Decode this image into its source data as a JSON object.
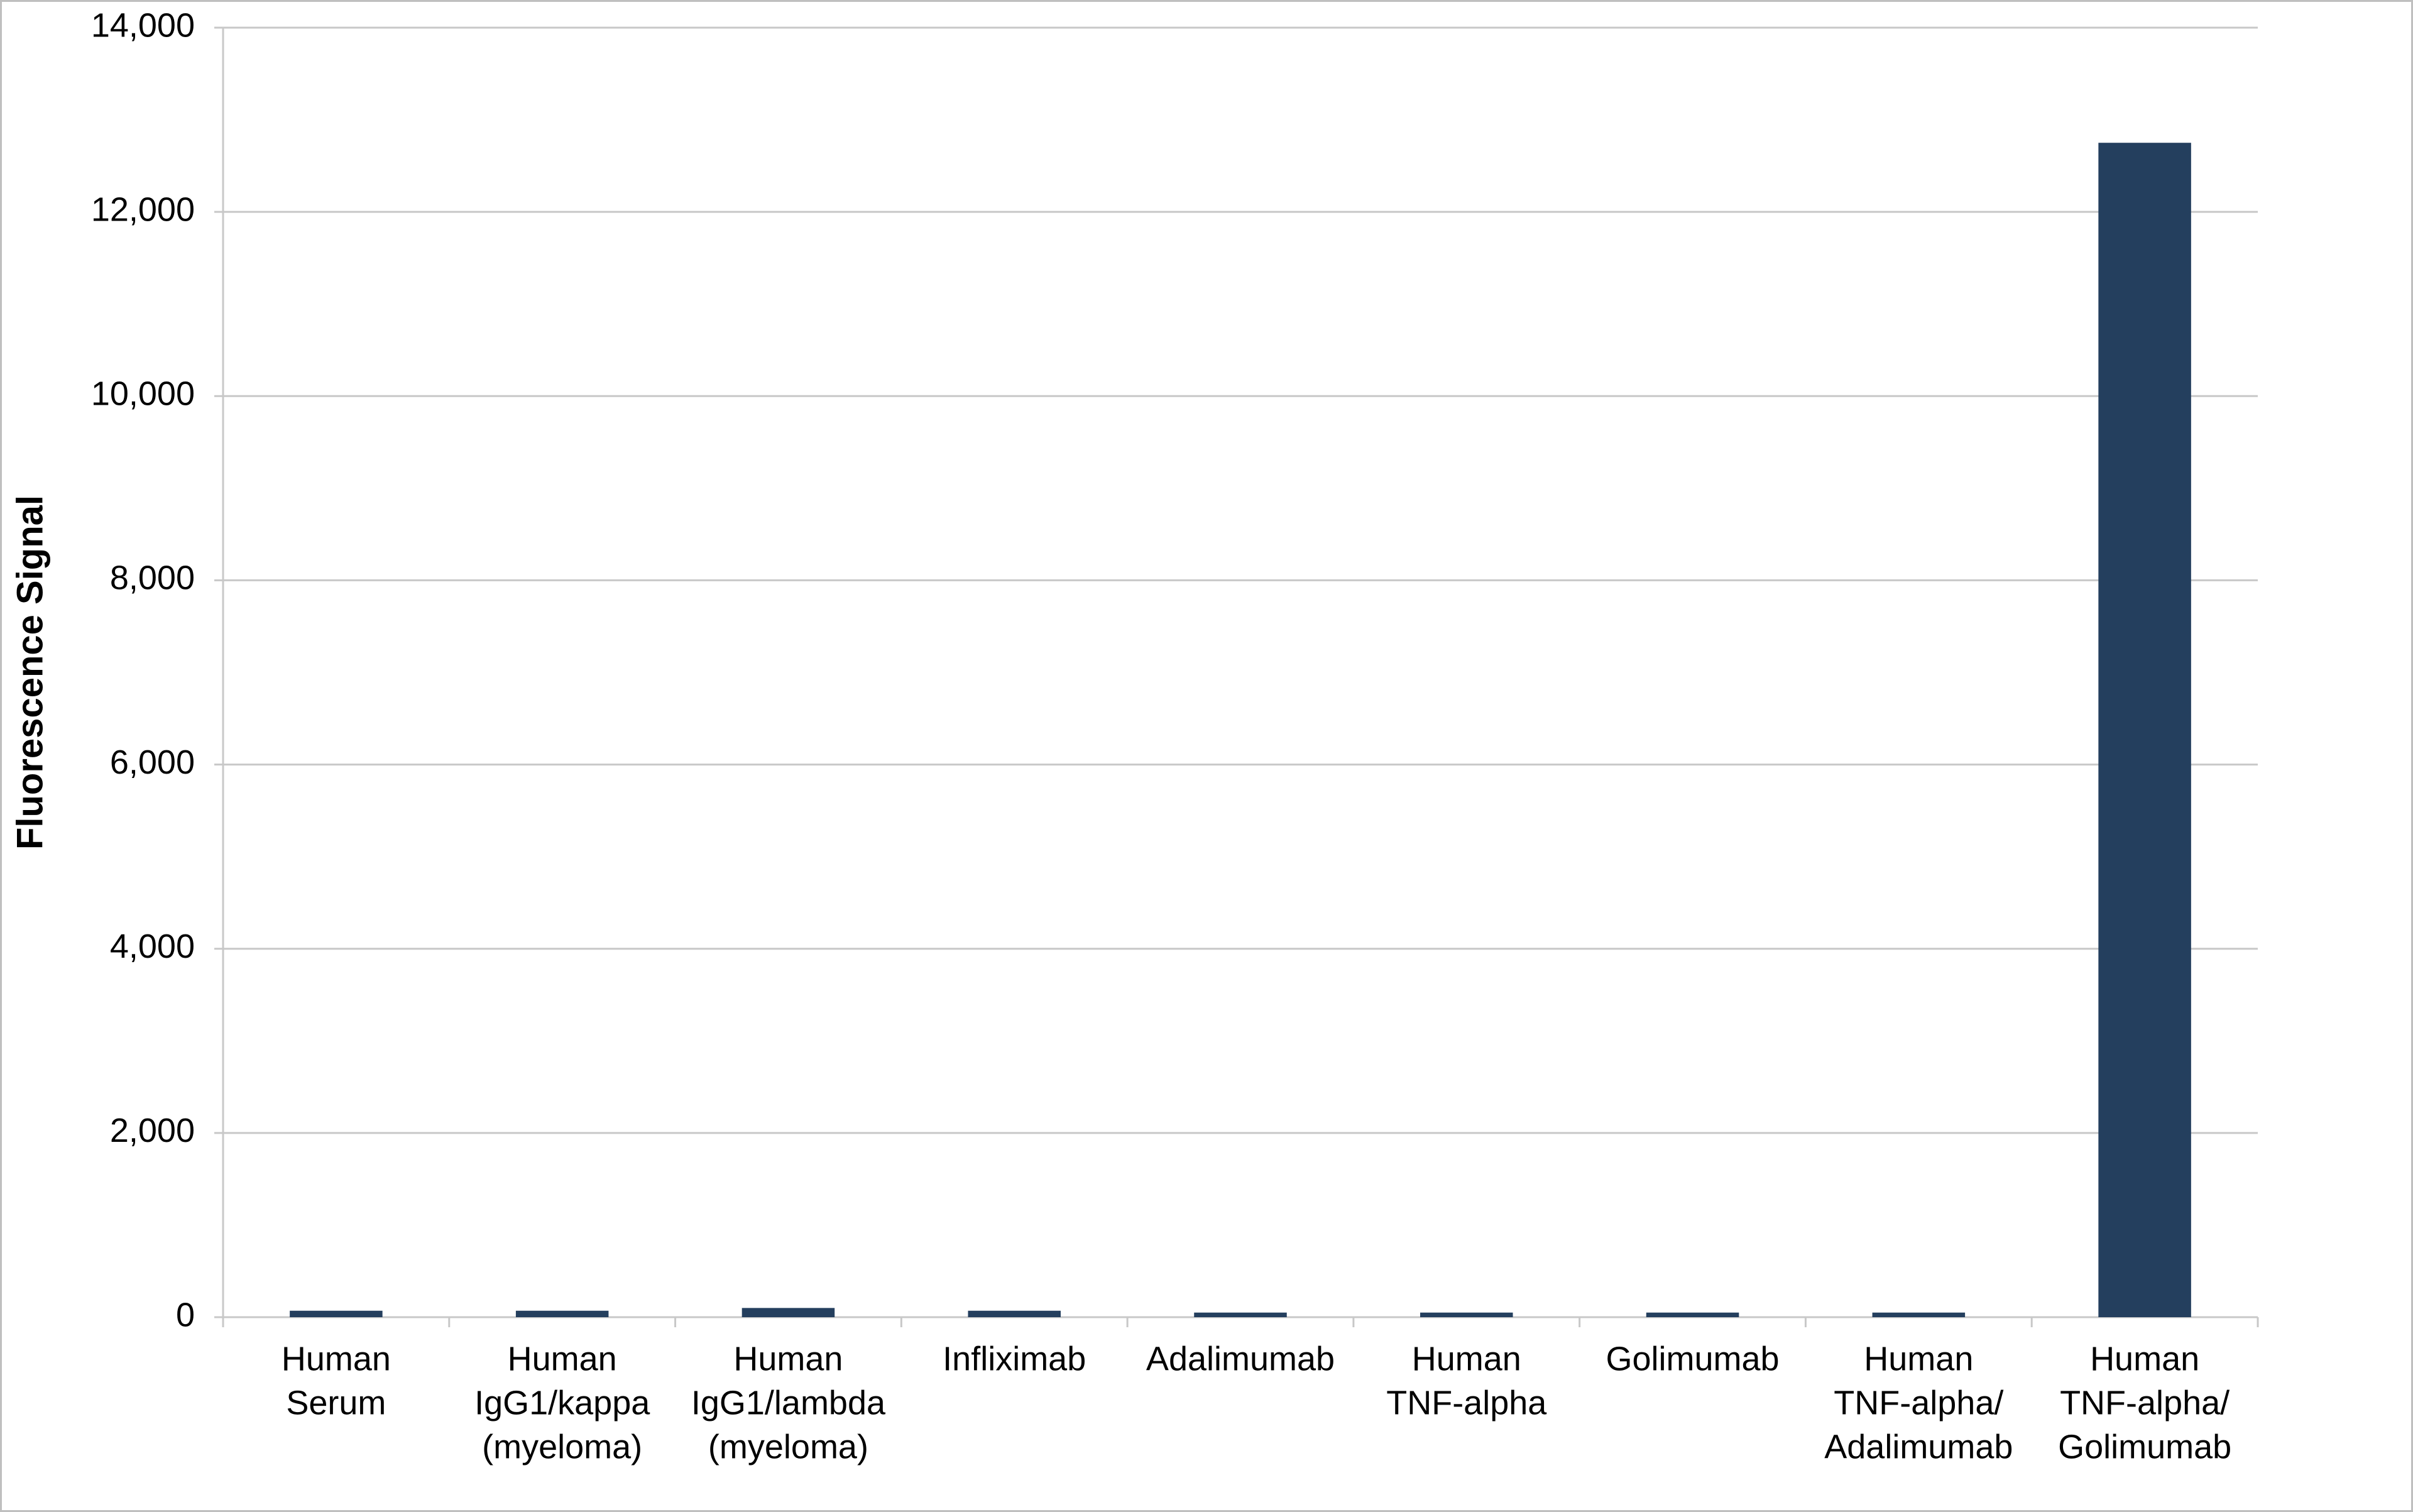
{
  "chart_data": {
    "type": "bar",
    "y_label": "Fluorescence Signal",
    "categories": [
      [
        "Human",
        "Serum"
      ],
      [
        "Human",
        "IgG1/kappa",
        "(myeloma)"
      ],
      [
        "Human",
        "IgG1/lambda",
        "(myeloma)"
      ],
      [
        "Infliximab"
      ],
      [
        "Adalimumab"
      ],
      [
        "Human",
        "TNF-alpha"
      ],
      [
        "Golimumab"
      ],
      [
        "Human",
        "TNF-alpha/",
        "Adalimumab"
      ],
      [
        "Human",
        "TNF-alpha/",
        "Golimumab"
      ]
    ],
    "values": [
      70,
      70,
      100,
      70,
      50,
      50,
      50,
      50,
      12750
    ],
    "color": "#243f5e",
    "ylim": [
      0,
      14000
    ],
    "yticks": [
      0,
      {
        "value": 2000,
        "label": "2,000"
      },
      {
        "value": 4000,
        "label": "4,000"
      },
      {
        "value": 6000,
        "label": "6,000"
      },
      {
        "value": 8000,
        "label": "8,000"
      },
      {
        "value": 10000,
        "label": "10,000"
      },
      {
        "value": 12000,
        "label": "12,000"
      },
      {
        "value": 14000,
        "label": "14,000"
      }
    ],
    "grid": true
  }
}
